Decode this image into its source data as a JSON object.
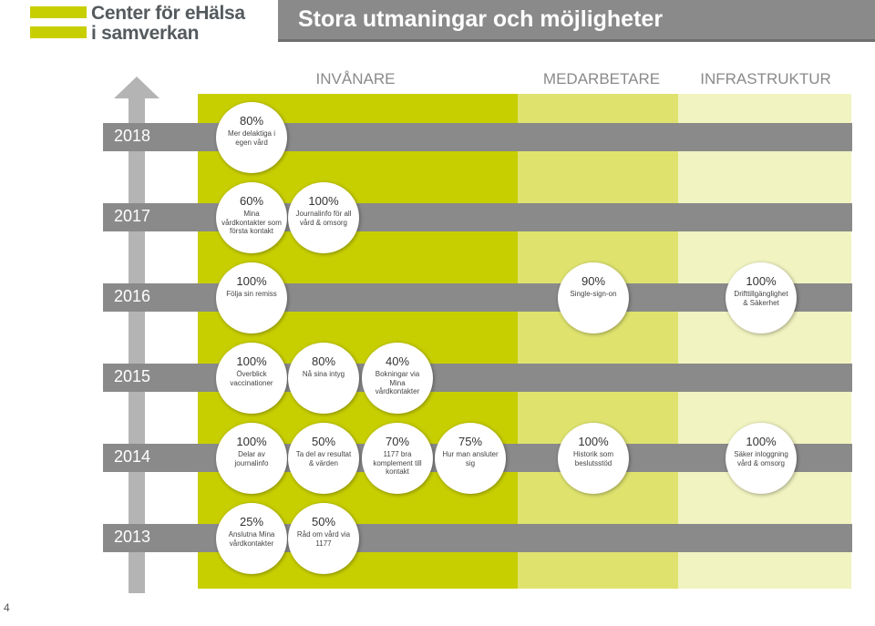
{
  "header": {
    "logo_line1": "Center för eHälsa",
    "logo_line2": "i samverkan",
    "title": "Stora utmaningar och möjligheter"
  },
  "columns": [
    "INVÅNARE",
    "MEDARBETARE",
    "INFRASTRUKTUR"
  ],
  "colors": {
    "col1": "#c8cf00",
    "col2": "#dfe36e",
    "col3": "#f1f3c0",
    "bar": "#8a8a8a",
    "arrow": "#b4b4b4",
    "logo_accent": "#c8cf00"
  },
  "years": [
    "2018",
    "2017",
    "2016",
    "2015",
    "2014",
    "2013"
  ],
  "goals": {
    "y2018": [
      {
        "pct": "80%",
        "desc": "Mer delaktiga i egen vård"
      }
    ],
    "y2017": [
      {
        "pct": "60%",
        "desc": "Mina vårdkontakter som första kontakt"
      },
      {
        "pct": "100%",
        "desc": "Journalinfo för all vård & omsorg"
      }
    ],
    "y2016": [
      {
        "pct": "100%",
        "desc": "Följa sin remiss"
      },
      {
        "pct": "90%",
        "desc": "Single-sign-on"
      },
      {
        "pct": "100%",
        "desc": "Drifttillgänglighet & Säkerhet"
      }
    ],
    "y2015": [
      {
        "pct": "100%",
        "desc": "Överblick vaccinationer"
      },
      {
        "pct": "80%",
        "desc": "Nå sina intyg"
      },
      {
        "pct": "40%",
        "desc": "Bokningar via Mina vårdkontakter"
      }
    ],
    "y2014": [
      {
        "pct": "100%",
        "desc": "Delar av journalinfo"
      },
      {
        "pct": "50%",
        "desc": "Ta del av resultat & värden"
      },
      {
        "pct": "70%",
        "desc": "1177 bra komplement till kontakt"
      },
      {
        "pct": "75%",
        "desc": "Hur man ansluter sig"
      },
      {
        "pct": "100%",
        "desc": "Historik som beslutsstöd"
      },
      {
        "pct": "100%",
        "desc": "Säker inloggning vård & omsorg"
      }
    ],
    "y2013": [
      {
        "pct": "25%",
        "desc": "Anslutna Mina vårdkontakter"
      },
      {
        "pct": "50%",
        "desc": "Råd om vård via 1177"
      }
    ]
  },
  "page_number": "4"
}
